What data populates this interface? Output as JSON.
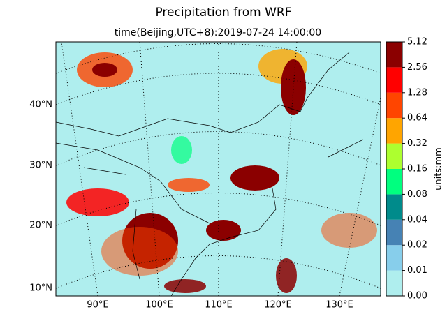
{
  "title": "Precipitation from WRF",
  "subtitle": "time(Beijing,UTC+8):2019-07-24 14:00:00",
  "map": {
    "lat_labels": [
      "40°N",
      "30°N",
      "20°N",
      "10°N"
    ],
    "lon_labels": [
      "90°E",
      "100°E",
      "110°E",
      "120°E",
      "130°E"
    ]
  },
  "colorbar": {
    "label": "units:mm",
    "ticks": [
      {
        "value": 0,
        "label": "0.00"
      },
      0.01,
      0.02,
      0.04,
      0.08,
      0.16,
      0.32,
      0.64,
      1.28,
      2.56,
      5.12
    ],
    "colors": [
      "#afeeee",
      "#87ceeb",
      "#4682b4",
      "#008b8b",
      "#00ff7f",
      "#adff2f",
      "#ffa500",
      "#ff4500",
      "#ff0000",
      "#8b0000"
    ]
  }
}
